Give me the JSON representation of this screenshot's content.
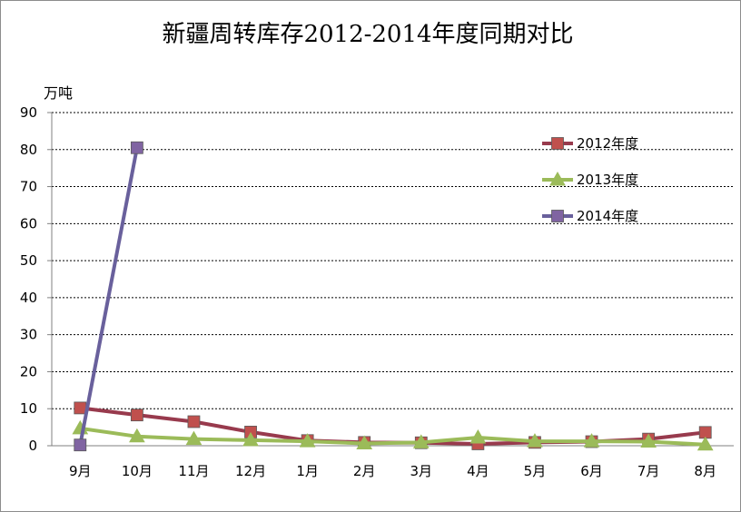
{
  "chart_data": {
    "type": "line",
    "title": "新疆周转库存2012-2014年度同期对比",
    "ylabel": "万吨",
    "xlabel": "",
    "ylim": [
      0,
      90
    ],
    "yticks": [
      0,
      10,
      20,
      30,
      40,
      50,
      60,
      70,
      80,
      90
    ],
    "grid": true,
    "legend_position": "right",
    "categories": [
      "9月",
      "10月",
      "11月",
      "12月",
      "1月",
      "2月",
      "3月",
      "4月",
      "5月",
      "6月",
      "7月",
      "8月"
    ],
    "series": [
      {
        "name": "2012年度",
        "color": "#983a4d",
        "marker": "square",
        "marker_color": "#c0504d",
        "values": [
          10.2,
          8.3,
          6.5,
          3.7,
          1.4,
          0.9,
          0.8,
          0.5,
          0.9,
          1.1,
          1.8,
          3.6
        ]
      },
      {
        "name": "2013年度",
        "color": "#9bbb59",
        "marker": "triangle",
        "marker_color": "#9bbb59",
        "values": [
          4.7,
          2.5,
          1.8,
          1.5,
          1.2,
          0.6,
          0.9,
          2.2,
          1.2,
          1.2,
          1.1,
          0.3
        ]
      },
      {
        "name": "2014年度",
        "color": "#69609c",
        "marker": "square",
        "marker_color": "#8064a2",
        "values": [
          0.2,
          80.5,
          null,
          null,
          null,
          null,
          null,
          null,
          null,
          null,
          null,
          null
        ]
      }
    ]
  }
}
